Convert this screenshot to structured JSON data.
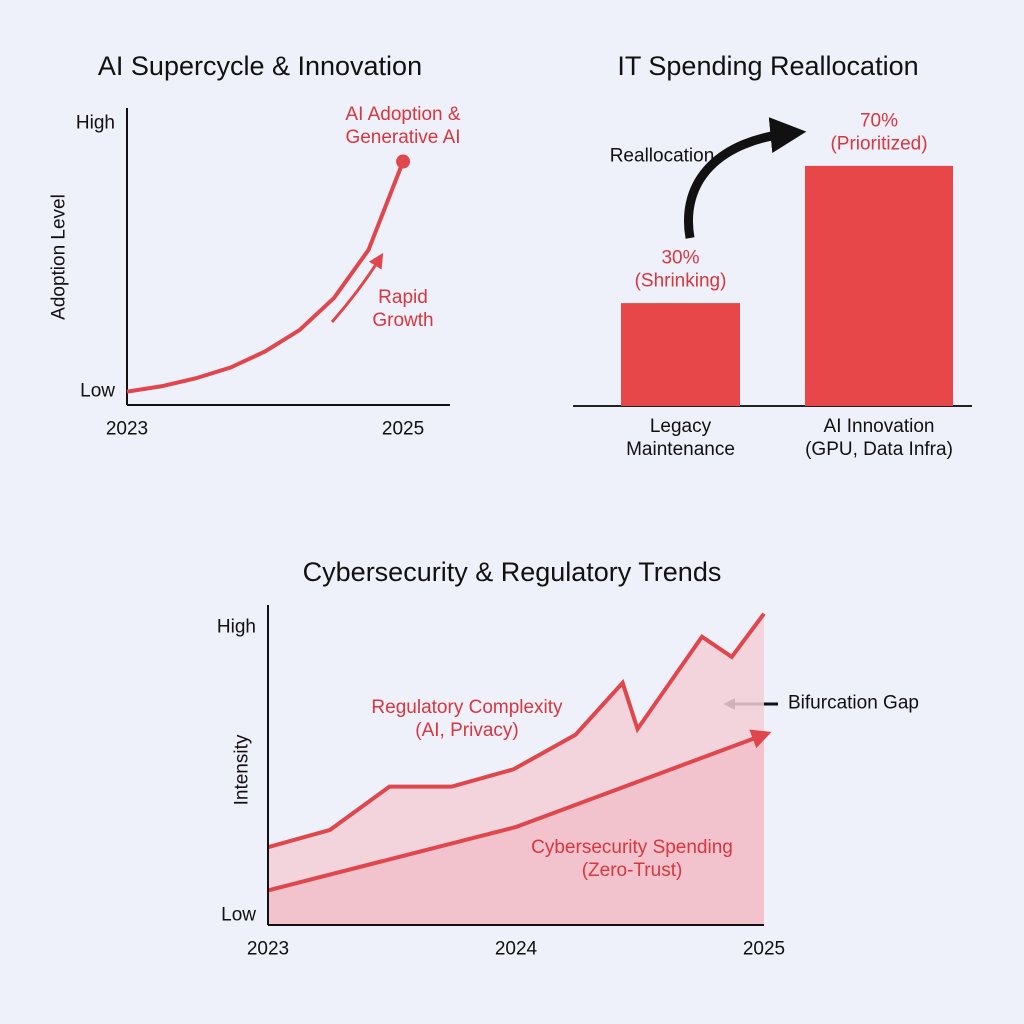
{
  "chart_data": [
    {
      "type": "line",
      "title": "AI Supercycle & Innovation",
      "y_label": "Adoption Level",
      "x": [
        2023,
        2023.25,
        2023.5,
        2023.75,
        2024,
        2024.25,
        2024.5,
        2024.75,
        2025
      ],
      "values": [
        0,
        2,
        5,
        9,
        15,
        23,
        35,
        53,
        86
      ],
      "color": "#e0474c",
      "xlim": [
        2023,
        2025.34
      ],
      "xticks": [
        2023,
        2025
      ],
      "ylim": [
        -5,
        106
      ],
      "yticks": [
        {
          "value": 0,
          "label": "Low"
        },
        {
          "value": 100,
          "label": "High"
        }
      ],
      "annotations": [
        "AI Adoption &\nGenerative AI",
        "Rapid\nGrowth"
      ]
    },
    {
      "type": "bar",
      "title": "IT Spending Reallocation",
      "categories": [
        "Legacy\nMaintenance",
        "AI Innovation\n(GPU, Data Infra)"
      ],
      "values": [
        30,
        70
      ],
      "value_labels": [
        "30%\n(Shrinking)",
        "70%\n(Prioritized)"
      ],
      "color": "#e8474a",
      "annotations": [
        "Reallocation"
      ]
    },
    {
      "type": "area",
      "title": "Cybersecurity & Regulatory Trends",
      "y_label": "Intensity",
      "xlim": [
        2023,
        2025
      ],
      "xticks": [
        2023,
        2024,
        2025
      ],
      "ylim": [
        -3,
        108
      ],
      "yticks": [
        {
          "value": 0,
          "label": "Low"
        },
        {
          "value": 100,
          "label": "High"
        }
      ],
      "series": [
        {
          "name": "Regulatory Complexity\n(AI, Privacy)",
          "color": "#e0474c",
          "x": [
            2023,
            2023.25,
            2023.49,
            2023.74,
            2023.99,
            2024.24,
            2024.43,
            2024.49,
            2024.75,
            2024.87,
            2025
          ],
          "values": [
            24,
            30,
            45,
            45,
            51,
            63,
            81,
            65,
            97,
            90,
            105
          ]
        },
        {
          "name": "Cybersecurity Spending\n(Zero-Trust)",
          "color": "#e0474c",
          "x": [
            2023,
            2024,
            2025
          ],
          "values": [
            9,
            31,
            63
          ]
        }
      ],
      "annotations": [
        "Bifurcation Gap"
      ]
    }
  ]
}
